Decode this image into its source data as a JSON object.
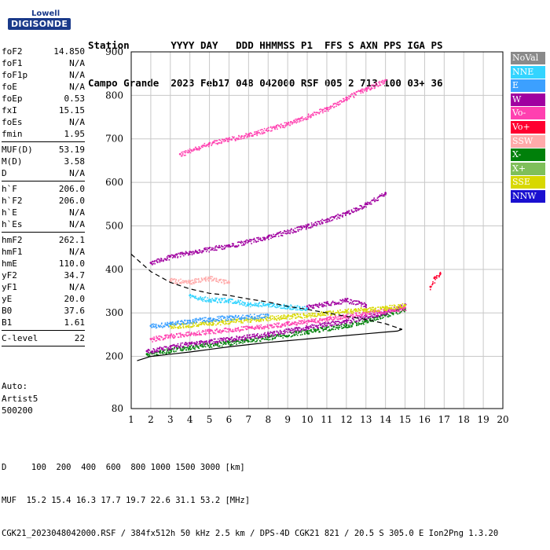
{
  "logo": {
    "top": "Lowell",
    "main": "DIGISONDE"
  },
  "header": {
    "row1": "Station       YYYY DAY   DDD HHMMSS P1  FFS S AXN PPS IGA PS",
    "row2": "Campo Grande  2023 Feb17 048 042000 RSF 005 2 713 100 03+ 36"
  },
  "params": [
    [
      {
        "k": "foF2",
        "v": "14.850"
      },
      {
        "k": "foF1",
        "v": "N/A"
      },
      {
        "k": "foF1p",
        "v": "N/A"
      },
      {
        "k": "foE",
        "v": "N/A"
      },
      {
        "k": "foEp",
        "v": "0.53"
      },
      {
        "k": "fxI",
        "v": "15.15"
      },
      {
        "k": "foEs",
        "v": "N/A"
      },
      {
        "k": "fmin",
        "v": "1.95"
      }
    ],
    [
      {
        "k": "MUF(D)",
        "v": "53.19"
      },
      {
        "k": "M(D)",
        "v": "3.58"
      },
      {
        "k": "D",
        "v": "N/A"
      }
    ],
    [
      {
        "k": "h`F",
        "v": "206.0"
      },
      {
        "k": "h`F2",
        "v": "206.0"
      },
      {
        "k": "h`E",
        "v": "N/A"
      },
      {
        "k": "h`Es",
        "v": "N/A"
      }
    ],
    [
      {
        "k": "hmF2",
        "v": "262.1"
      },
      {
        "k": "hmF1",
        "v": "N/A"
      },
      {
        "k": "hmE",
        "v": "110.0"
      },
      {
        "k": "yF2",
        "v": "34.7"
      },
      {
        "k": "yF1",
        "v": "N/A"
      },
      {
        "k": "yE",
        "v": "20.0"
      },
      {
        "k": "B0",
        "v": "37.6"
      },
      {
        "k": "B1",
        "v": "1.61"
      }
    ],
    [
      {
        "k": "C-level",
        "v": "22"
      }
    ]
  ],
  "auto": {
    "l1": "Auto:",
    "l2": "Artist5",
    "l3": "500200"
  },
  "legend": [
    {
      "label": "NoVal",
      "color": "#8a8a8a"
    },
    {
      "label": "NNE",
      "color": "#33d4ff"
    },
    {
      "label": "E",
      "color": "#3ca0ff"
    },
    {
      "label": "W",
      "color": "#a000a0"
    },
    {
      "label": "Vo-",
      "color": "#ff40b0"
    },
    {
      "label": "Vo+",
      "color": "#ff0030"
    },
    {
      "label": "SSW",
      "color": "#ffaaaa"
    },
    {
      "label": "X-",
      "color": "#00800a"
    },
    {
      "label": "X+",
      "color": "#7fbf5a"
    },
    {
      "label": "SSE",
      "color": "#d8d800"
    },
    {
      "label": "NNW",
      "color": "#1a10d0"
    }
  ],
  "bottom": {
    "line1": "D     100  200  400  600  800 1000 1500 3000 [km]",
    "line2": "MUF  15.2 15.4 16.3 17.7 19.7 22.6 31.1 53.2 [MHz]",
    "line3": "CGK21_2023048042000.RSF / 384fx512h 50 kHz 2.5 km / DPS-4D CGK21 821 / 20.5 S 305.0 E Ion2Png 1.3.20"
  },
  "chart_data": {
    "type": "scatter",
    "xlim": [
      1,
      20
    ],
    "ylim": [
      80,
      900
    ],
    "xticks": [
      1,
      2,
      3,
      4,
      5,
      6,
      7,
      8,
      9,
      10,
      11,
      12,
      13,
      14,
      15,
      16,
      17,
      18,
      19,
      20
    ],
    "yticks": [
      80,
      200,
      300,
      400,
      500,
      600,
      700,
      800,
      900
    ],
    "grid": true,
    "traces": [
      {
        "name": "F-trace",
        "x": [
          1.8,
          3,
          4,
          6,
          8,
          10,
          12,
          13,
          14,
          15
        ],
        "y": [
          205,
          215,
          222,
          232,
          244,
          258,
          272,
          282,
          295,
          310
        ],
        "color": "#00800a"
      },
      {
        "name": "F-trace-vo",
        "x": [
          1.8,
          3,
          4,
          6,
          8,
          10,
          12,
          13,
          14,
          15
        ],
        "y": [
          212,
          222,
          230,
          240,
          252,
          267,
          282,
          292,
          303,
          318
        ],
        "color": "#a000a0"
      },
      {
        "name": "F-trace-x",
        "x": [
          2,
          3,
          5,
          7,
          9,
          11,
          12,
          13,
          14,
          15
        ],
        "y": [
          240,
          248,
          258,
          266,
          276,
          286,
          294,
          300,
          306,
          312
        ],
        "color": "#ff40b0"
      },
      {
        "name": "F-trace-sse",
        "x": [
          3,
          5,
          7,
          9,
          11,
          12,
          13,
          14,
          15
        ],
        "y": [
          270,
          277,
          285,
          292,
          300,
          305,
          308,
          312,
          318
        ],
        "color": "#d8d800"
      },
      {
        "name": "2F-echo",
        "x": [
          2,
          3,
          4,
          6,
          8,
          10,
          12,
          13,
          14
        ],
        "y": [
          415,
          430,
          440,
          455,
          475,
          500,
          530,
          550,
          575
        ],
        "color": "#a000a0"
      },
      {
        "name": "3F-echo",
        "x": [
          3.5,
          5,
          7,
          9,
          11,
          12,
          13,
          14
        ],
        "y": [
          665,
          690,
          710,
          735,
          770,
          795,
          815,
          835
        ],
        "color": "#ff40b0"
      },
      {
        "name": "oblique-E",
        "x": [
          2,
          3,
          4,
          5,
          6,
          7,
          8
        ],
        "y": [
          270,
          275,
          282,
          286,
          290,
          292,
          295
        ],
        "color": "#3ca0ff"
      },
      {
        "name": "oblique-NNE",
        "x": [
          4,
          5,
          6,
          7,
          8,
          9,
          10
        ],
        "y": [
          340,
          330,
          330,
          320,
          320,
          315,
          310
        ],
        "color": "#33d4ff"
      },
      {
        "name": "spread-W",
        "x": [
          10,
          11,
          12,
          13
        ],
        "y": [
          315,
          322,
          330,
          318
        ],
        "color": "#a000a0"
      },
      {
        "name": "spread-SSW",
        "x": [
          3,
          4,
          5,
          6
        ],
        "y": [
          375,
          372,
          380,
          370
        ],
        "color": "#ffaaaa"
      },
      {
        "name": "high-Vo+",
        "x": [
          16.3,
          16.5,
          16.8
        ],
        "y": [
          360,
          380,
          390
        ],
        "color": "#ff0030"
      }
    ],
    "profile_solid": {
      "x": [
        1.3,
        2,
        3,
        4,
        5,
        6,
        7,
        8,
        9,
        10,
        11,
        12,
        13,
        14,
        14.6,
        14.85,
        14.7
      ],
      "y": [
        190,
        200,
        205,
        210,
        216,
        222,
        227,
        232,
        236,
        240,
        244,
        248,
        252,
        256,
        258,
        262,
        263
      ]
    },
    "profile_dashed": {
      "x": [
        1,
        2,
        3,
        4,
        5,
        6,
        7,
        8,
        9,
        10,
        11,
        12,
        13,
        14,
        14.85
      ],
      "y": [
        435,
        395,
        370,
        355,
        345,
        340,
        332,
        325,
        315,
        308,
        300,
        292,
        285,
        275,
        262
      ]
    }
  }
}
